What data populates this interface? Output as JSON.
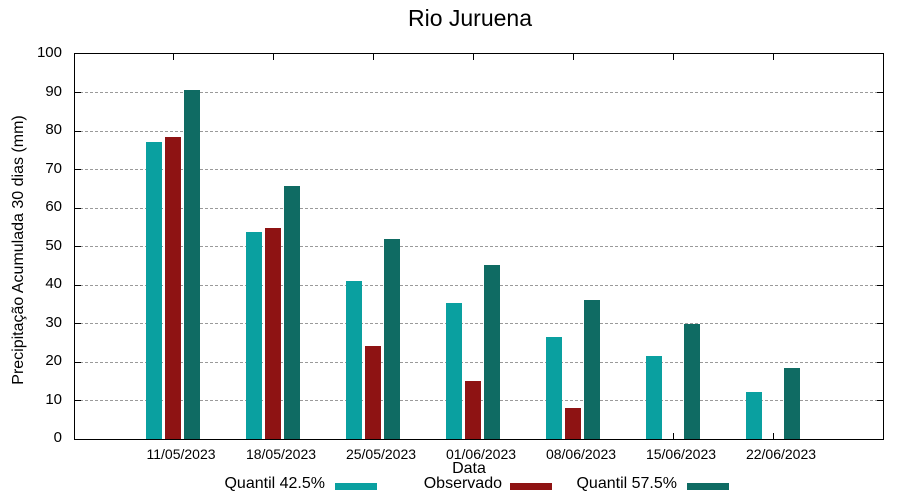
{
  "chart_data": {
    "type": "bar",
    "title": "Rio Juruena",
    "xlabel": "Data",
    "ylabel": "Precipitação Acumulada 30 dias (mm)",
    "ylim": [
      0,
      100
    ],
    "ytick_step": 10,
    "yticks": [
      0,
      10,
      20,
      30,
      40,
      50,
      60,
      70,
      80,
      90,
      100
    ],
    "grid": "horizontal-dashed",
    "legend_position": "bottom",
    "categories": [
      "11/05/2023",
      "18/05/2023",
      "25/05/2023",
      "01/06/2023",
      "08/06/2023",
      "15/06/2023",
      "22/06/2023"
    ],
    "series": [
      {
        "name": "Quantil 42.5%",
        "color": "#0aa0a0",
        "values": [
          77.2,
          53.7,
          41.1,
          35.4,
          26.6,
          21.5,
          12.3
        ]
      },
      {
        "name": "Observado",
        "color": "#8e1313",
        "values": [
          78.4,
          54.8,
          24.2,
          15.0,
          8.1,
          null,
          null
        ]
      },
      {
        "name": "Quantil 57.5%",
        "color": "#0f6b63",
        "values": [
          90.7,
          65.7,
          52.0,
          45.1,
          36.2,
          29.8,
          18.4
        ]
      }
    ]
  }
}
